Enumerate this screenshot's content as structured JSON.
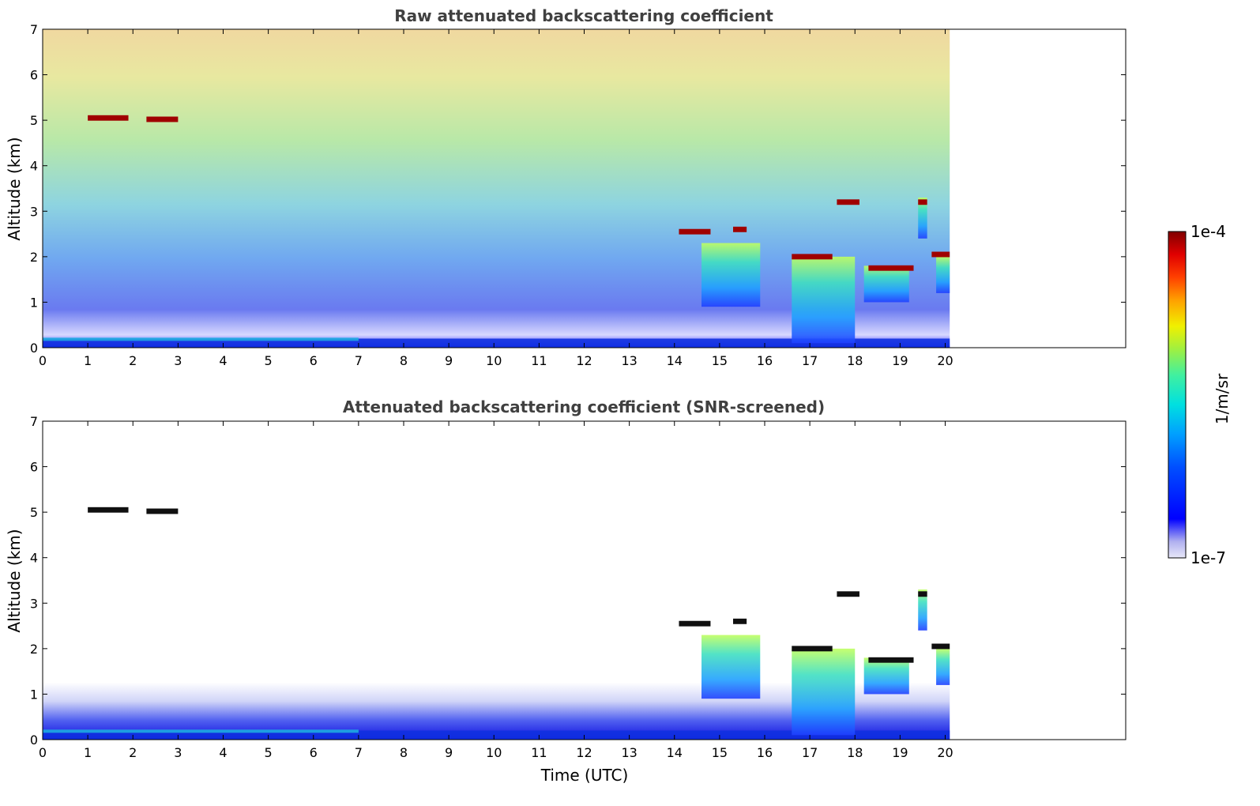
{
  "chart_data": [
    {
      "type": "heatmap",
      "title": "Raw attenuated backscattering coefficient",
      "xlabel": "",
      "ylabel": "Altitude (km)",
      "xlim": [
        0,
        24
      ],
      "ylim": [
        0,
        7
      ],
      "x_ticks": [
        "0",
        "1",
        "2",
        "3",
        "4",
        "5",
        "6",
        "7",
        "8",
        "9",
        "10",
        "11",
        "12",
        "13",
        "14",
        "15",
        "16",
        "17",
        "18",
        "19",
        "20"
      ],
      "y_ticks": [
        "0",
        "1",
        "2",
        "3",
        "4",
        "5",
        "6",
        "7"
      ],
      "data_end_time": 20.1,
      "features": [
        {
          "kind": "cloud",
          "t0": 1.0,
          "t1": 1.9,
          "alt": 5.05,
          "value": "1e-4"
        },
        {
          "kind": "cloud",
          "t0": 2.3,
          "t1": 3.0,
          "alt": 5.02,
          "value": "1e-4"
        },
        {
          "kind": "cloud",
          "t0": 14.1,
          "t1": 14.8,
          "alt": 2.55,
          "value": "1e-4"
        },
        {
          "kind": "cloud",
          "t0": 15.3,
          "t1": 15.6,
          "alt": 2.6,
          "value": "1e-4"
        },
        {
          "kind": "cloud",
          "t0": 16.6,
          "t1": 17.5,
          "alt": 2.0,
          "value": "1e-4"
        },
        {
          "kind": "cloud",
          "t0": 18.3,
          "t1": 19.3,
          "alt": 1.75,
          "value": "1e-4"
        },
        {
          "kind": "cloud",
          "t0": 19.7,
          "t1": 20.1,
          "alt": 2.05,
          "value": "1e-4"
        },
        {
          "kind": "cloud",
          "t0": 17.6,
          "t1": 18.1,
          "alt": 3.2,
          "value": "1e-4"
        },
        {
          "kind": "cloud",
          "t0": 19.4,
          "t1": 19.6,
          "alt": 3.2,
          "value": "1e-4"
        }
      ]
    },
    {
      "type": "heatmap",
      "title": "Attenuated backscattering coefficient (SNR-screened)",
      "xlabel": "Time (UTC)",
      "ylabel": "Altitude (km)",
      "xlim": [
        0,
        24
      ],
      "ylim": [
        0,
        7
      ],
      "x_ticks": [
        "0",
        "1",
        "2",
        "3",
        "4",
        "5",
        "6",
        "7",
        "8",
        "9",
        "10",
        "11",
        "12",
        "13",
        "14",
        "15",
        "16",
        "17",
        "18",
        "19",
        "20"
      ],
      "y_ticks": [
        "0",
        "1",
        "2",
        "3",
        "4",
        "5",
        "6",
        "7"
      ],
      "data_end_time": 20.1
    }
  ],
  "colorbar": {
    "label": "1/m/sr",
    "max_label": "1e-4",
    "min_label": "1e-7",
    "colors": [
      "#e8e8f8",
      "#b0b0ef",
      "#0000ff",
      "#0050ff",
      "#00a0ff",
      "#00e0e0",
      "#40f0a0",
      "#a0f040",
      "#f0f000",
      "#ffa000",
      "#ff4000",
      "#e00000",
      "#800000"
    ]
  }
}
